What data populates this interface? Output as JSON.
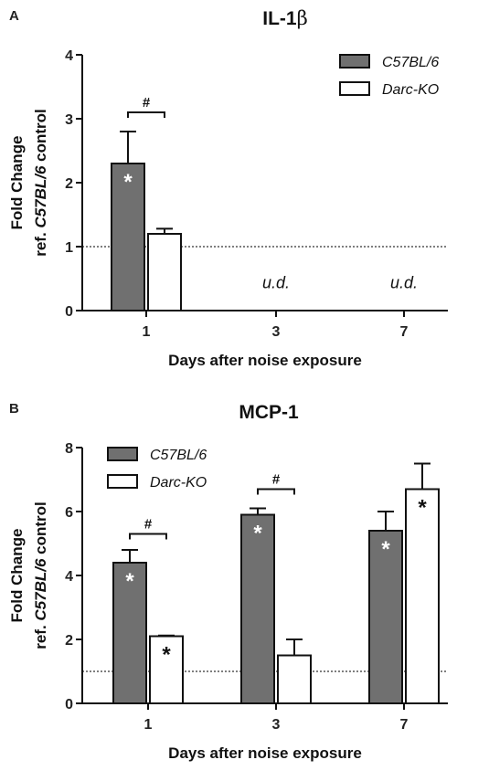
{
  "chart_data": [
    {
      "panel_label": "A",
      "type": "bar",
      "title_main": "IL-1",
      "title_greek": "β",
      "ylabel_line1": "Fold Change",
      "ylabel_line2_prefix": "ref. ",
      "ylabel_line2_italic": "C57BL/6",
      "ylabel_line2_suffix": " control",
      "xlabel": "Days after noise exposure",
      "ylim": [
        0,
        4
      ],
      "yticks": [
        "0",
        "1",
        "2",
        "3",
        "4"
      ],
      "categories": [
        "1",
        "3",
        "7"
      ],
      "reference_line": 1,
      "legend_position": "top-right",
      "series": [
        {
          "name": "C57BL/6",
          "color": "#707070",
          "values": [
            2.3,
            null,
            null
          ],
          "errors": [
            0.5,
            null,
            null
          ],
          "stars": [
            true,
            false,
            false
          ]
        },
        {
          "name": "Darc-KO",
          "color": "#ffffff",
          "values": [
            1.2,
            null,
            null
          ],
          "errors": [
            0.08,
            null,
            null
          ],
          "stars": [
            false,
            false,
            false
          ]
        }
      ],
      "not_detected": [
        {
          "category": "3",
          "label": "u.d."
        },
        {
          "category": "7",
          "label": "u.d."
        }
      ],
      "significance": [
        {
          "category": "1",
          "label": "#",
          "level": 3.1
        }
      ]
    },
    {
      "panel_label": "B",
      "type": "bar",
      "title_main": "MCP-1",
      "title_greek": "",
      "ylabel_line1": "Fold Change",
      "ylabel_line2_prefix": "ref. ",
      "ylabel_line2_italic": "C57BL/6",
      "ylabel_line2_suffix": " control",
      "xlabel": "Days after noise exposure",
      "ylim": [
        0,
        8
      ],
      "yticks": [
        "0",
        "2",
        "4",
        "6",
        "8"
      ],
      "categories": [
        "1",
        "3",
        "7"
      ],
      "reference_line": 1,
      "legend_position": "top-left",
      "series": [
        {
          "name": "C57BL/6",
          "color": "#707070",
          "values": [
            4.4,
            5.9,
            5.4
          ],
          "errors": [
            0.4,
            0.2,
            0.6
          ],
          "stars": [
            true,
            true,
            true
          ]
        },
        {
          "name": "Darc-KO",
          "color": "#ffffff",
          "values": [
            2.1,
            1.5,
            6.7
          ],
          "errors": [
            0.02,
            0.5,
            0.8
          ],
          "stars": [
            true,
            false,
            true
          ]
        }
      ],
      "not_detected": [],
      "significance": [
        {
          "category": "1",
          "label": "#",
          "level": 5.3
        },
        {
          "category": "3",
          "label": "#",
          "level": 6.7
        }
      ]
    }
  ]
}
